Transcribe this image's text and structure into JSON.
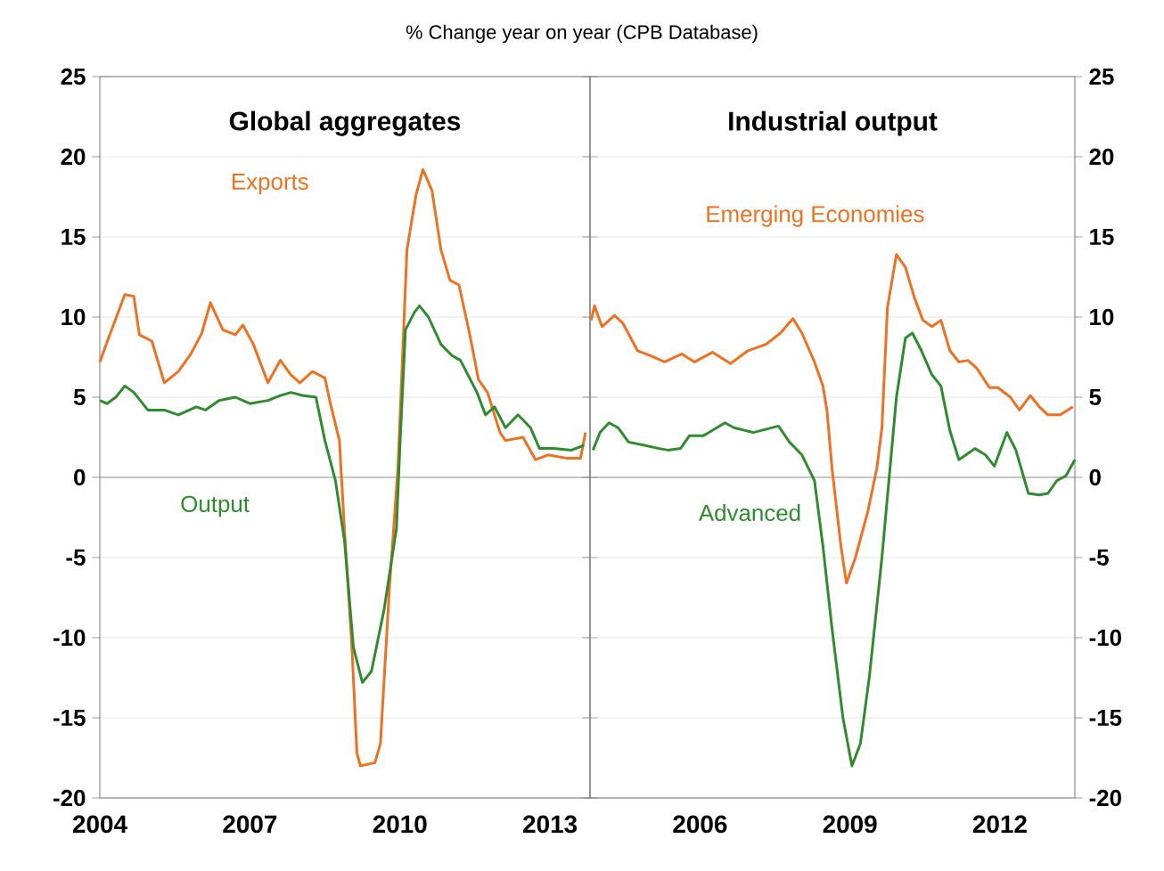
{
  "chart_data": [
    {
      "type": "line",
      "title": "Global aggregates",
      "annotations": [
        "% Change year on year (CPB Database)"
      ],
      "xlim": [
        2004,
        2013.8
      ],
      "xticks": [
        2004,
        2007,
        2010,
        2013
      ],
      "ylim": [
        -20,
        25
      ],
      "yticks": [
        -20,
        -15,
        -10,
        -5,
        0,
        5,
        10,
        15,
        20,
        25
      ],
      "grid": "y",
      "ref_lines": [
        {
          "axis": "y",
          "value": 0,
          "color": "#808080"
        }
      ],
      "series": [
        {
          "name": "Exports",
          "color": "#f07020",
          "x": [
            2004.0,
            2004.14,
            2004.5,
            2004.68,
            2004.79,
            2005.04,
            2005.29,
            2005.57,
            2005.82,
            2006.04,
            2006.21,
            2006.46,
            2006.71,
            2006.86,
            2007.07,
            2007.36,
            2007.61,
            2007.82,
            2008.0,
            2008.25,
            2008.5,
            2008.61,
            2008.79,
            2008.89,
            2009.04,
            2009.14,
            2009.21,
            2009.5,
            2009.61,
            2009.79,
            2009.96,
            2010.14,
            2010.32,
            2010.46,
            2010.64,
            2010.82,
            2011.0,
            2011.18,
            2011.39,
            2011.57,
            2011.75,
            2011.89,
            2012.0,
            2012.11,
            2012.46,
            2012.71,
            2012.96,
            2013.32,
            2013.61,
            2013.71
          ],
          "values": [
            7.2,
            8.4,
            11.4,
            11.3,
            8.9,
            8.5,
            5.9,
            6.6,
            7.7,
            9.0,
            10.9,
            9.2,
            8.9,
            9.5,
            8.3,
            5.9,
            7.3,
            6.4,
            5.9,
            6.6,
            6.2,
            4.6,
            2.3,
            -3.2,
            -10.6,
            -17.2,
            -18.0,
            -17.8,
            -16.6,
            -6.9,
            0.6,
            14.2,
            17.6,
            19.2,
            17.9,
            14.2,
            12.3,
            12.0,
            9.0,
            6.1,
            5.3,
            3.9,
            2.8,
            2.3,
            2.5,
            1.1,
            1.4,
            1.2,
            1.2,
            2.8
          ]
        },
        {
          "name": "Output",
          "color": "#2e8b2e",
          "x": [
            2004.0,
            2004.14,
            2004.32,
            2004.5,
            2004.68,
            2004.96,
            2005.29,
            2005.57,
            2005.93,
            2006.11,
            2006.39,
            2006.71,
            2007.0,
            2007.36,
            2007.61,
            2007.82,
            2008.07,
            2008.32,
            2008.5,
            2008.71,
            2008.89,
            2009.07,
            2009.25,
            2009.43,
            2009.68,
            2009.93,
            2010.0,
            2010.11,
            2010.29,
            2010.39,
            2010.57,
            2010.82,
            2011.04,
            2011.21,
            2011.54,
            2011.71,
            2011.89,
            2012.11,
            2012.36,
            2012.61,
            2012.79,
            2013.07,
            2013.43,
            2013.68
          ],
          "values": [
            4.8,
            4.6,
            5.0,
            5.7,
            5.3,
            4.2,
            4.2,
            3.9,
            4.4,
            4.2,
            4.8,
            5.0,
            4.6,
            4.8,
            5.1,
            5.3,
            5.1,
            5.0,
            2.3,
            -0.2,
            -3.9,
            -10.6,
            -12.8,
            -12.1,
            -8.3,
            -3.2,
            2.0,
            9.2,
            10.3,
            10.7,
            10.0,
            8.3,
            7.6,
            7.3,
            5.3,
            3.9,
            4.4,
            3.1,
            3.9,
            3.1,
            1.8,
            1.8,
            1.7,
            2.0
          ]
        }
      ]
    },
    {
      "type": "line",
      "title": "Industrial output",
      "xlim": [
        2003.8,
        2013.5
      ],
      "xticks": [
        2006,
        2009,
        2012
      ],
      "ylim": [
        -20,
        25
      ],
      "yticks": [
        -20,
        -15,
        -10,
        -5,
        0,
        5,
        10,
        15,
        20,
        25
      ],
      "grid": "y",
      "ref_lines": [
        {
          "axis": "y",
          "value": 0,
          "color": "#808080"
        }
      ],
      "series": [
        {
          "name": "Emerging Economies",
          "color": "#f07020",
          "x": [
            2003.82,
            2003.89,
            2004.04,
            2004.29,
            2004.46,
            2004.75,
            2005.0,
            2005.29,
            2005.64,
            2005.89,
            2006.25,
            2006.61,
            2006.96,
            2007.32,
            2007.61,
            2007.86,
            2008.04,
            2008.29,
            2008.46,
            2008.54,
            2008.64,
            2008.82,
            2008.93,
            2009.11,
            2009.36,
            2009.54,
            2009.64,
            2009.75,
            2009.93,
            2010.11,
            2010.29,
            2010.46,
            2010.64,
            2010.82,
            2011.0,
            2011.18,
            2011.36,
            2011.54,
            2011.79,
            2011.96,
            2012.21,
            2012.39,
            2012.61,
            2012.79,
            2012.96,
            2013.21,
            2013.46
          ],
          "values": [
            9.8,
            10.7,
            9.4,
            10.1,
            9.6,
            7.9,
            7.6,
            7.2,
            7.7,
            7.2,
            7.8,
            7.1,
            7.9,
            8.3,
            9.0,
            9.9,
            9.0,
            7.2,
            5.7,
            4.2,
            0.6,
            -4.3,
            -6.6,
            -5.0,
            -2.1,
            0.6,
            3.1,
            10.6,
            13.9,
            13.1,
            11.2,
            9.8,
            9.4,
            9.8,
            7.9,
            7.2,
            7.3,
            6.8,
            5.6,
            5.6,
            5.0,
            4.2,
            5.1,
            4.4,
            3.9,
            3.9,
            4.4
          ]
        },
        {
          "name": "Advanced",
          "color": "#2e8b2e",
          "x": [
            2003.86,
            2004.0,
            2004.18,
            2004.36,
            2004.57,
            2004.89,
            2005.18,
            2005.36,
            2005.61,
            2005.79,
            2006.07,
            2006.5,
            2006.68,
            2007.07,
            2007.57,
            2007.79,
            2008.04,
            2008.29,
            2008.46,
            2008.64,
            2008.86,
            2009.04,
            2009.21,
            2009.39,
            2009.64,
            2009.82,
            2009.93,
            2010.11,
            2010.25,
            2010.43,
            2010.64,
            2010.82,
            2011.0,
            2011.18,
            2011.5,
            2011.71,
            2011.89,
            2012.14,
            2012.32,
            2012.57,
            2012.79,
            2012.96,
            2013.14,
            2013.32,
            2013.5
          ],
          "values": [
            1.7,
            2.8,
            3.4,
            3.1,
            2.2,
            2.0,
            1.8,
            1.7,
            1.8,
            2.6,
            2.6,
            3.4,
            3.1,
            2.8,
            3.2,
            2.2,
            1.4,
            -0.2,
            -4.3,
            -9.4,
            -15.0,
            -18.0,
            -16.6,
            -12.4,
            -5.0,
            1.2,
            5.0,
            8.7,
            9.0,
            7.9,
            6.4,
            5.7,
            2.9,
            1.1,
            1.8,
            1.4,
            0.7,
            2.8,
            1.7,
            -1.0,
            -1.1,
            -1.0,
            -0.2,
            0.1,
            1.1
          ]
        }
      ]
    }
  ]
}
